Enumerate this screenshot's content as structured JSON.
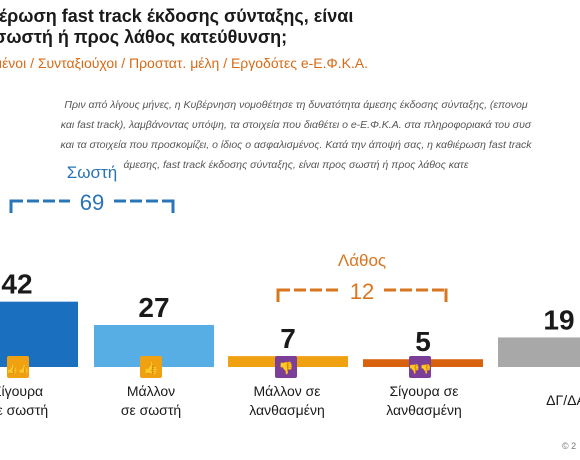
{
  "header": {
    "title_lines": [
      "ιέρωση fast track έκδοσης σύνταξης, είναι",
      "σωστή ή προς λάθος κατεύθυνση;"
    ],
    "subtitle": "μένοι / Συνταξιούχοι / Προστατ. μέλη / Εργοδότες e-Ε.Φ.Κ.Α.",
    "question_lines": [
      "Πριν από λίγους μήνες, η Κυβέρνηση νομοθέτησε τη δυνατότητα άμεσης έκδοσης σύνταξης, (επονομ",
      "και fast track), λαμβάνοντας υπόψη, τα στοιχεία που διαθέτει ο e-Ε.Φ.Κ.Α. στα πληροφοριακά του συσ",
      "και τα στοιχεία που προσκομίζει, ο ίδιος ο ασφαλισμένος. Κατά την άποψή σας, η καθιέρωση fast track",
      "άμεσης, fast track έκδοσης σύνταξης, είναι προς σωστή ή προς λάθος κατε"
    ]
  },
  "colors": {
    "dark_blue": "#1a6fbf",
    "light_blue": "#56aee4",
    "yellow_orange": "#f0a112",
    "dark_orange": "#d9620f",
    "purple": "#7b3f98",
    "gray": "#a8a8a8",
    "group_blue": "#2a74b8",
    "group_orange": "#d9761f"
  },
  "icons": [
    "double-thumbs-up-icon",
    "thumbs-up-icon",
    "thumbs-down-icon",
    "double-thumbs-down-icon"
  ],
  "chart_data": {
    "type": "bar",
    "categories": [
      "Σίγουρα σε σωστή",
      "Μάλλον σε σωστή",
      "Μάλλον σε λανθασμένη",
      "Σίγουρα σε λανθασμένη",
      "ΔΓ/ΔΑ"
    ],
    "category_label_lines": [
      [
        "Σίγουρα",
        "σε σωστή"
      ],
      [
        "Μάλλον",
        "σε σωστή"
      ],
      [
        "Μάλλον σε",
        "λανθασμένη"
      ],
      [
        "Σίγουρα σε",
        "λανθασμένη"
      ],
      [
        "ΔΓ/ΔΑ"
      ]
    ],
    "values": [
      42,
      27,
      7,
      5,
      19
    ],
    "value_labels": [
      "42",
      "27",
      "7",
      "5",
      "19"
    ],
    "groups": [
      {
        "label": "Σωστή",
        "total": "69"
      },
      {
        "label": "Λάθος",
        "total": "12"
      }
    ],
    "ylim": [
      0,
      45
    ]
  },
  "footer": "© 2"
}
